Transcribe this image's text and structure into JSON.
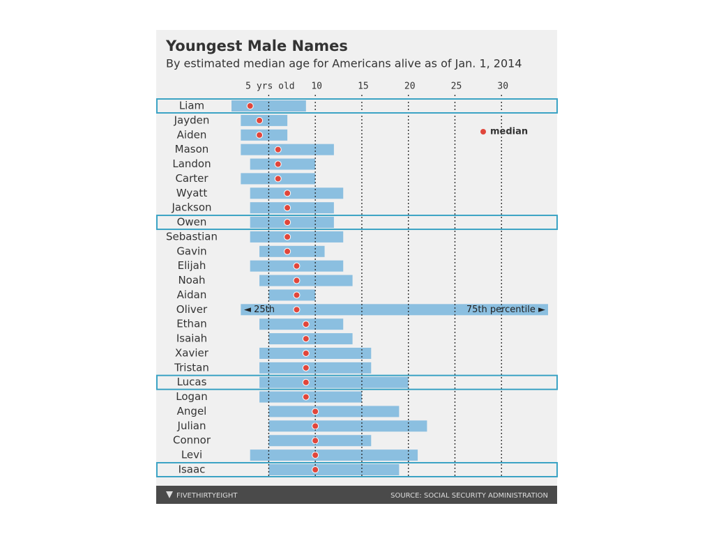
{
  "chart_data": {
    "type": "range",
    "title": "Youngest Male Names",
    "subtitle": "By estimated median age for Americans alive as of Jan. 1, 2014",
    "categories": [
      "Liam",
      "Jayden",
      "Aiden",
      "Mason",
      "Landon",
      "Carter",
      "Wyatt",
      "Jackson",
      "Owen",
      "Sebastian",
      "Gavin",
      "Elijah",
      "Noah",
      "Aidan",
      "Oliver",
      "Ethan",
      "Isaiah",
      "Xavier",
      "Tristan",
      "Lucas",
      "Logan",
      "Angel",
      "Julian",
      "Connor",
      "Levi",
      "Isaac"
    ],
    "low": [
      1,
      2,
      2,
      2,
      3,
      2,
      3,
      3,
      3,
      3,
      4,
      3,
      4,
      5,
      2,
      4,
      5,
      4,
      4,
      4,
      4,
      5,
      5,
      5,
      3,
      5
    ],
    "high": [
      9,
      7,
      7,
      12,
      10,
      10,
      13,
      12,
      12,
      13,
      11,
      13,
      14,
      10,
      35,
      13,
      14,
      16,
      16,
      20,
      15,
      19,
      22,
      16,
      21,
      19
    ],
    "median": [
      3,
      4,
      4,
      6,
      6,
      6,
      7,
      7,
      7,
      7,
      7,
      8,
      8,
      8,
      8,
      9,
      9,
      9,
      9,
      9,
      9,
      10,
      10,
      10,
      10,
      10
    ],
    "bar_color": "#8bbfe0",
    "median_color": "#e0463b",
    "highlight_color": "#3ba3c4",
    "highlighted": [
      0,
      8,
      19,
      25
    ],
    "xlim": [
      1,
      35
    ],
    "xticks": [
      {
        "value": 5,
        "label": "5 yrs old"
      },
      10,
      15,
      20,
      25,
      30
    ],
    "grid": true,
    "median_label": "median",
    "low_label": "◄ 25th",
    "high_label": "75th percentile ►",
    "brand": "FIVETHIRTYEIGHT",
    "source": "SOURCE: SOCIAL SECURITY ADMINISTRATION"
  }
}
